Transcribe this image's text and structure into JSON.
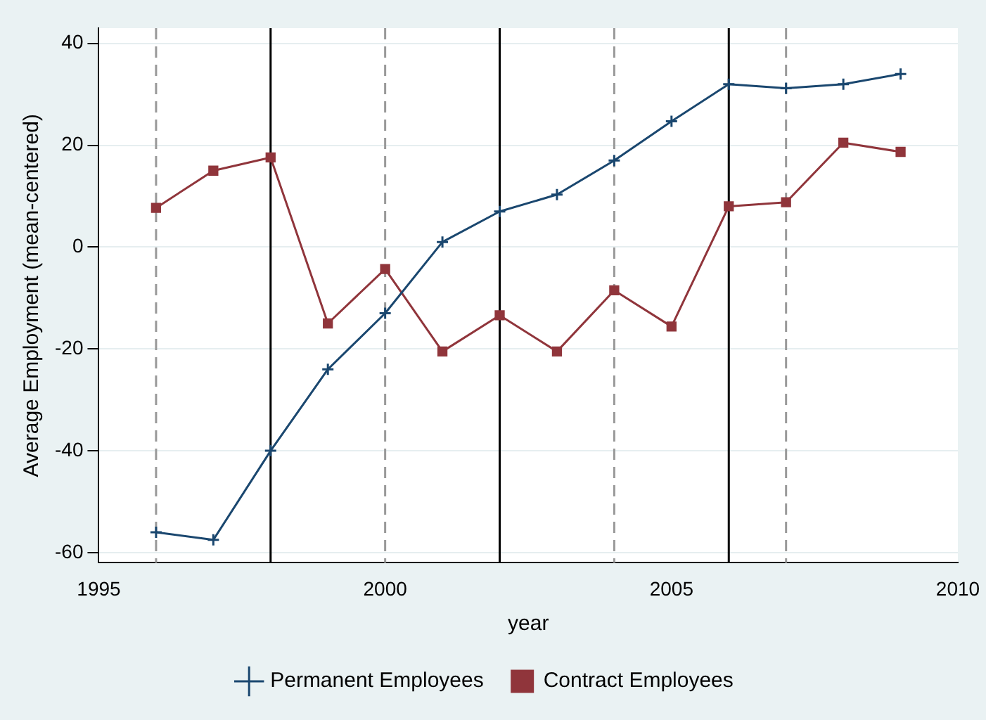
{
  "chart_data": {
    "type": "line",
    "xlabel": "year",
    "ylabel": "Average Employment (mean-centered)",
    "x": [
      1996,
      1997,
      1998,
      1999,
      2000,
      2001,
      2002,
      2003,
      2004,
      2005,
      2006,
      2007,
      2008,
      2009
    ],
    "series": [
      {
        "name": "Permanent Employees",
        "color": "#1a476f",
        "marker": "cross",
        "values": [
          -56,
          -57.5,
          -40,
          -24,
          -13,
          1,
          7,
          10.3,
          17,
          24.7,
          32,
          31.2,
          32,
          34
        ]
      },
      {
        "name": "Contract Employees",
        "color": "#90353b",
        "marker": "square",
        "values": [
          7.7,
          15,
          17.6,
          -15,
          -4.3,
          -20.5,
          -13.4,
          -20.5,
          -8.5,
          -15.6,
          8,
          8.8,
          20.5,
          18.7
        ]
      }
    ],
    "xlim": [
      1995,
      2010
    ],
    "xticks": [
      1995,
      2000,
      2005,
      2010
    ],
    "ylim": [
      -62,
      43
    ],
    "yticks": [
      -60,
      -40,
      -20,
      0,
      20,
      40
    ],
    "grid": "y",
    "legend": "bottom",
    "ref_lines": [
      {
        "axis": "x",
        "value": 1996,
        "color": "#999999",
        "line_style": "dashed"
      },
      {
        "axis": "x",
        "value": 1998,
        "color": "#000000",
        "line_style": "solid"
      },
      {
        "axis": "x",
        "value": 2000,
        "color": "#999999",
        "line_style": "dashed"
      },
      {
        "axis": "x",
        "value": 2002,
        "color": "#000000",
        "line_style": "solid"
      },
      {
        "axis": "x",
        "value": 2004,
        "color": "#999999",
        "line_style": "dashed"
      },
      {
        "axis": "x",
        "value": 2006,
        "color": "#000000",
        "line_style": "solid"
      },
      {
        "axis": "x",
        "value": 2007,
        "color": "#999999",
        "line_style": "dashed"
      }
    ]
  }
}
